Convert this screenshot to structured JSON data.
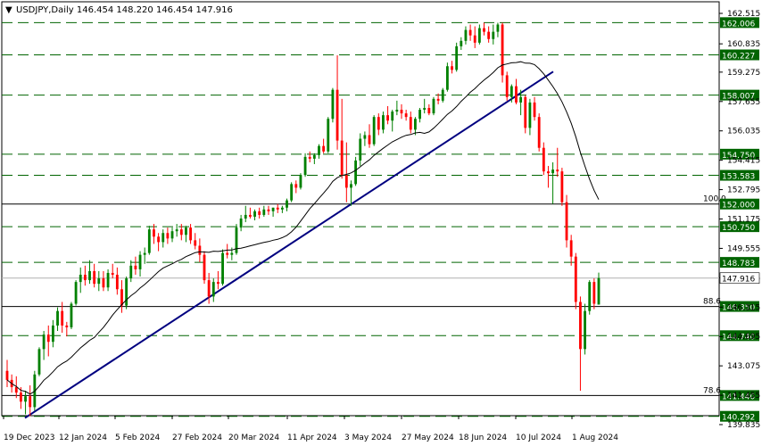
{
  "header": {
    "arrow_label": "▼",
    "text": "USDJPY,Daily  146.454 148.220 146.454 147.916"
  },
  "chart_data": {
    "type": "candlestick",
    "symbol": "USDJPY",
    "timeframe": "Daily",
    "ohlc_header": {
      "open": 146.454,
      "high": 148.22,
      "low": 146.454,
      "close": 147.916
    },
    "ylim": [
      139.835,
      162.515
    ],
    "price_scale_ticks": [
      "162.515",
      "160.835",
      "159.275",
      "157.655",
      "156.035",
      "154.415",
      "152.795",
      "151.175",
      "149.555",
      "147.935",
      "146.315",
      "144.695",
      "143.075",
      "141.455",
      "139.835"
    ],
    "x_tick_labels": [
      "19 Dec 2023",
      "12 Jan 2024",
      "5 Feb 2024",
      "27 Feb 2024",
      "20 Mar 2024",
      "11 Apr 2024",
      "3 May 2024",
      "27 May 2024",
      "18 Jun 2024",
      "10 Jul 2024",
      "1 Aug 2024"
    ],
    "horizontal_levels": [
      {
        "price": 162.006,
        "label": "162.006",
        "style": "dashed"
      },
      {
        "price": 160.227,
        "label": "160.227",
        "style": "dashed"
      },
      {
        "price": 158.007,
        "label": "158.007",
        "style": "dashed"
      },
      {
        "price": 154.75,
        "label": "154.750",
        "style": "dashed"
      },
      {
        "price": 153.583,
        "label": "153.583",
        "style": "dashed"
      },
      {
        "price": 152.0,
        "label": "152.000",
        "style": "solid"
      },
      {
        "price": 150.75,
        "label": "150.750",
        "style": "dashed"
      },
      {
        "price": 148.783,
        "label": "148.783",
        "style": "dashed"
      },
      {
        "price": 146.35,
        "label": "146.350",
        "style": "solid"
      },
      {
        "price": 144.74,
        "label": "144.740",
        "style": "dashed"
      },
      {
        "price": 141.44,
        "label": "141.440",
        "style": "solid"
      },
      {
        "price": 140.292,
        "label": "140.292",
        "style": "dashed"
      }
    ],
    "fib_labels": [
      {
        "price": 152.0,
        "label": "100.0"
      },
      {
        "price": 146.35,
        "label": "88.6"
      },
      {
        "price": 141.44,
        "label": "78.6"
      }
    ],
    "current_price": {
      "price": 147.916,
      "label": "147.916"
    },
    "trendline": {
      "from_price": 140.2,
      "to_price": 159.3
    },
    "candles": [
      [
        142.8,
        143.4,
        141.9,
        142.3
      ],
      [
        142.3,
        142.6,
        141.6,
        141.9
      ],
      [
        141.9,
        142.5,
        141.3,
        141.6
      ],
      [
        141.6,
        141.9,
        140.7,
        141.1
      ],
      [
        141.1,
        141.7,
        140.4,
        141.4
      ],
      [
        141.4,
        142.0,
        140.3,
        140.8
      ],
      [
        140.8,
        142.8,
        140.6,
        142.6
      ],
      [
        142.6,
        144.1,
        142.5,
        144.0
      ],
      [
        144.0,
        145.0,
        143.4,
        144.8
      ],
      [
        144.8,
        145.3,
        143.6,
        144.4
      ],
      [
        144.4,
        145.6,
        144.1,
        145.3
      ],
      [
        145.3,
        146.3,
        145.0,
        146.1
      ],
      [
        146.1,
        146.6,
        144.9,
        145.3
      ],
      [
        145.3,
        145.5,
        144.7,
        145.2
      ],
      [
        145.2,
        146.6,
        145.1,
        146.5
      ],
      [
        146.5,
        147.8,
        146.4,
        147.7
      ],
      [
        147.7,
        148.5,
        147.1,
        148.1
      ],
      [
        148.1,
        148.6,
        147.5,
        147.8
      ],
      [
        147.8,
        148.9,
        147.6,
        148.3
      ],
      [
        148.3,
        148.7,
        147.4,
        147.6
      ],
      [
        147.6,
        148.3,
        147.2,
        147.9
      ],
      [
        147.9,
        148.3,
        147.2,
        147.4
      ],
      [
        147.4,
        148.4,
        147.2,
        148.2
      ],
      [
        148.2,
        148.7,
        147.9,
        148.1
      ],
      [
        148.1,
        148.5,
        147.0,
        147.3
      ],
      [
        147.3,
        147.8,
        146.0,
        146.4
      ],
      [
        146.4,
        148.0,
        146.2,
        147.9
      ],
      [
        147.9,
        148.9,
        147.7,
        148.6
      ],
      [
        148.6,
        149.1,
        148.1,
        148.4
      ],
      [
        148.4,
        149.4,
        148.0,
        149.2
      ],
      [
        149.2,
        149.6,
        148.7,
        149.3
      ],
      [
        149.3,
        150.8,
        149.2,
        150.6
      ],
      [
        150.6,
        150.9,
        149.8,
        150.2
      ],
      [
        150.2,
        150.4,
        149.4,
        149.9
      ],
      [
        149.9,
        150.6,
        149.6,
        150.4
      ],
      [
        150.4,
        150.7,
        149.8,
        150.1
      ],
      [
        150.1,
        150.7,
        149.9,
        150.5
      ],
      [
        150.5,
        150.9,
        150.2,
        150.6
      ],
      [
        150.6,
        150.9,
        150.0,
        150.3
      ],
      [
        150.3,
        150.8,
        149.9,
        150.7
      ],
      [
        150.7,
        150.9,
        149.8,
        150.0
      ],
      [
        150.0,
        150.4,
        149.5,
        149.7
      ],
      [
        149.7,
        150.1,
        148.8,
        149.2
      ],
      [
        149.2,
        149.4,
        147.6,
        147.8
      ],
      [
        147.8,
        148.2,
        146.5,
        146.9
      ],
      [
        146.9,
        147.9,
        146.6,
        147.7
      ],
      [
        147.7,
        148.3,
        147.3,
        147.6
      ],
      [
        147.6,
        149.5,
        147.5,
        149.3
      ],
      [
        149.3,
        149.8,
        149.0,
        149.2
      ],
      [
        149.2,
        149.6,
        148.9,
        149.3
      ],
      [
        149.3,
        150.9,
        149.2,
        150.7
      ],
      [
        150.7,
        151.4,
        150.5,
        151.2
      ],
      [
        151.2,
        151.9,
        151.0,
        151.4
      ],
      [
        151.4,
        151.8,
        151.2,
        151.3
      ],
      [
        151.3,
        151.7,
        151.1,
        151.6
      ],
      [
        151.6,
        151.8,
        151.2,
        151.4
      ],
      [
        151.4,
        151.9,
        151.3,
        151.7
      ],
      [
        151.7,
        151.9,
        151.4,
        151.6
      ],
      [
        151.6,
        151.8,
        151.3,
        151.8
      ],
      [
        151.8,
        152.0,
        151.5,
        151.7
      ],
      [
        151.7,
        151.9,
        151.5,
        151.8
      ],
      [
        151.8,
        152.3,
        151.6,
        152.2
      ],
      [
        152.2,
        153.2,
        152.1,
        153.1
      ],
      [
        153.1,
        153.3,
        152.6,
        152.9
      ],
      [
        152.9,
        153.7,
        152.8,
        153.6
      ],
      [
        153.6,
        154.8,
        153.5,
        154.6
      ],
      [
        154.6,
        154.9,
        154.3,
        154.5
      ],
      [
        154.5,
        154.8,
        154.2,
        154.7
      ],
      [
        154.7,
        155.3,
        154.5,
        155.2
      ],
      [
        155.2,
        155.6,
        154.8,
        154.9
      ],
      [
        154.9,
        156.8,
        154.8,
        156.7
      ],
      [
        156.7,
        158.4,
        156.5,
        158.3
      ],
      [
        158.3,
        160.2,
        155.0,
        155.5
      ],
      [
        155.5,
        157.8,
        153.4,
        153.6
      ],
      [
        153.6,
        155.4,
        152.1,
        152.9
      ],
      [
        152.9,
        153.3,
        151.9,
        153.1
      ],
      [
        153.1,
        154.6,
        153.0,
        154.4
      ],
      [
        154.4,
        155.9,
        154.1,
        155.6
      ],
      [
        155.6,
        156.0,
        155.2,
        155.8
      ],
      [
        155.8,
        156.4,
        155.1,
        155.3
      ],
      [
        155.3,
        156.9,
        155.2,
        156.8
      ],
      [
        156.8,
        157.0,
        155.8,
        156.1
      ],
      [
        156.1,
        157.1,
        155.9,
        156.9
      ],
      [
        156.9,
        157.4,
        156.4,
        156.6
      ],
      [
        156.6,
        157.2,
        156.0,
        157.1
      ],
      [
        157.1,
        157.7,
        156.9,
        157.2
      ],
      [
        157.2,
        157.5,
        156.7,
        157.0
      ],
      [
        157.0,
        157.2,
        156.6,
        156.8
      ],
      [
        156.8,
        157.1,
        155.9,
        156.1
      ],
      [
        156.1,
        156.8,
        155.8,
        156.7
      ],
      [
        156.7,
        157.3,
        156.5,
        157.2
      ],
      [
        157.2,
        157.8,
        157.0,
        157.3
      ],
      [
        157.3,
        157.5,
        156.9,
        157.0
      ],
      [
        157.0,
        157.9,
        156.9,
        157.8
      ],
      [
        157.8,
        158.1,
        157.5,
        157.7
      ],
      [
        157.7,
        158.4,
        157.6,
        158.3
      ],
      [
        158.3,
        159.8,
        158.2,
        159.6
      ],
      [
        159.6,
        159.9,
        159.2,
        159.4
      ],
      [
        159.4,
        160.9,
        159.3,
        160.7
      ],
      [
        160.7,
        161.2,
        160.5,
        161.0
      ],
      [
        161.0,
        161.8,
        160.8,
        161.6
      ],
      [
        161.6,
        161.9,
        161.0,
        161.3
      ],
      [
        161.3,
        161.8,
        160.6,
        160.9
      ],
      [
        160.9,
        161.9,
        160.8,
        161.7
      ],
      [
        161.7,
        162.0,
        161.3,
        161.5
      ],
      [
        161.5,
        161.8,
        160.9,
        161.1
      ],
      [
        161.1,
        161.9,
        160.8,
        161.5
      ],
      [
        161.5,
        162.0,
        161.2,
        161.9
      ],
      [
        161.9,
        162.0,
        158.7,
        159.1
      ],
      [
        159.1,
        159.3,
        157.7,
        157.9
      ],
      [
        157.9,
        158.6,
        157.6,
        158.5
      ],
      [
        158.5,
        158.9,
        157.5,
        157.6
      ],
      [
        157.6,
        158.3,
        156.9,
        157.9
      ],
      [
        157.9,
        158.0,
        155.9,
        156.2
      ],
      [
        156.2,
        157.8,
        155.8,
        157.6
      ],
      [
        157.6,
        157.9,
        156.6,
        156.8
      ],
      [
        156.8,
        157.0,
        154.9,
        155.1
      ],
      [
        155.1,
        155.4,
        153.6,
        153.8
      ],
      [
        153.8,
        154.1,
        152.9,
        153.7
      ],
      [
        153.7,
        154.3,
        152.0,
        153.9
      ],
      [
        153.9,
        155.1,
        153.5,
        153.8
      ],
      [
        153.8,
        154.0,
        151.9,
        152.1
      ],
      [
        152.1,
        152.5,
        149.6,
        150.0
      ],
      [
        150.0,
        150.3,
        148.6,
        149.1
      ],
      [
        149.1,
        149.3,
        146.2,
        146.6
      ],
      [
        146.6,
        146.9,
        141.7,
        144.0
      ],
      [
        144.0,
        146.5,
        143.7,
        146.1
      ],
      [
        146.1,
        147.8,
        145.9,
        147.7
      ],
      [
        147.7,
        147.9,
        146.2,
        146.5
      ],
      [
        146.454,
        148.22,
        146.454,
        147.916
      ]
    ]
  }
}
